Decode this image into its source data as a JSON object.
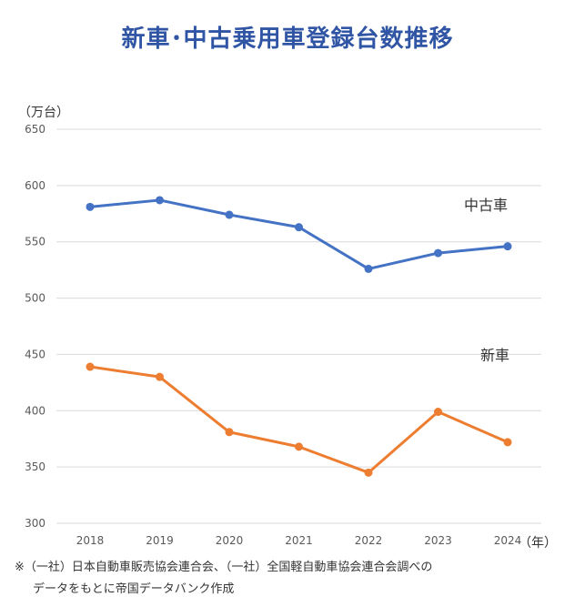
{
  "title": "新車･中古乗用車登録台数推移",
  "chart_data": {
    "type": "line",
    "title": "新車･中古乗用車登録台数推移",
    "ylabel": "（万台）",
    "xlabel": "（年）",
    "categories": [
      "2018",
      "2019",
      "2020",
      "2021",
      "2022",
      "2023",
      "2024"
    ],
    "ylim": [
      300,
      650
    ],
    "yticks": [
      300,
      350,
      400,
      450,
      500,
      550,
      600,
      650
    ],
    "grid": true,
    "series": [
      {
        "name": "中古車",
        "color": "#4472c4",
        "values": [
          581,
          587,
          574,
          563,
          526,
          540,
          546
        ]
      },
      {
        "name": "新車",
        "color": "#ed7d31",
        "values": [
          439,
          430,
          381,
          368,
          345,
          399,
          372
        ]
      }
    ]
  },
  "notes": {
    "line1": "※（一社）日本自動車販売協会連合会、（一社）全国軽自動車協会連合会調べの",
    "line2": "データをもとに帝国データバンク作成"
  }
}
